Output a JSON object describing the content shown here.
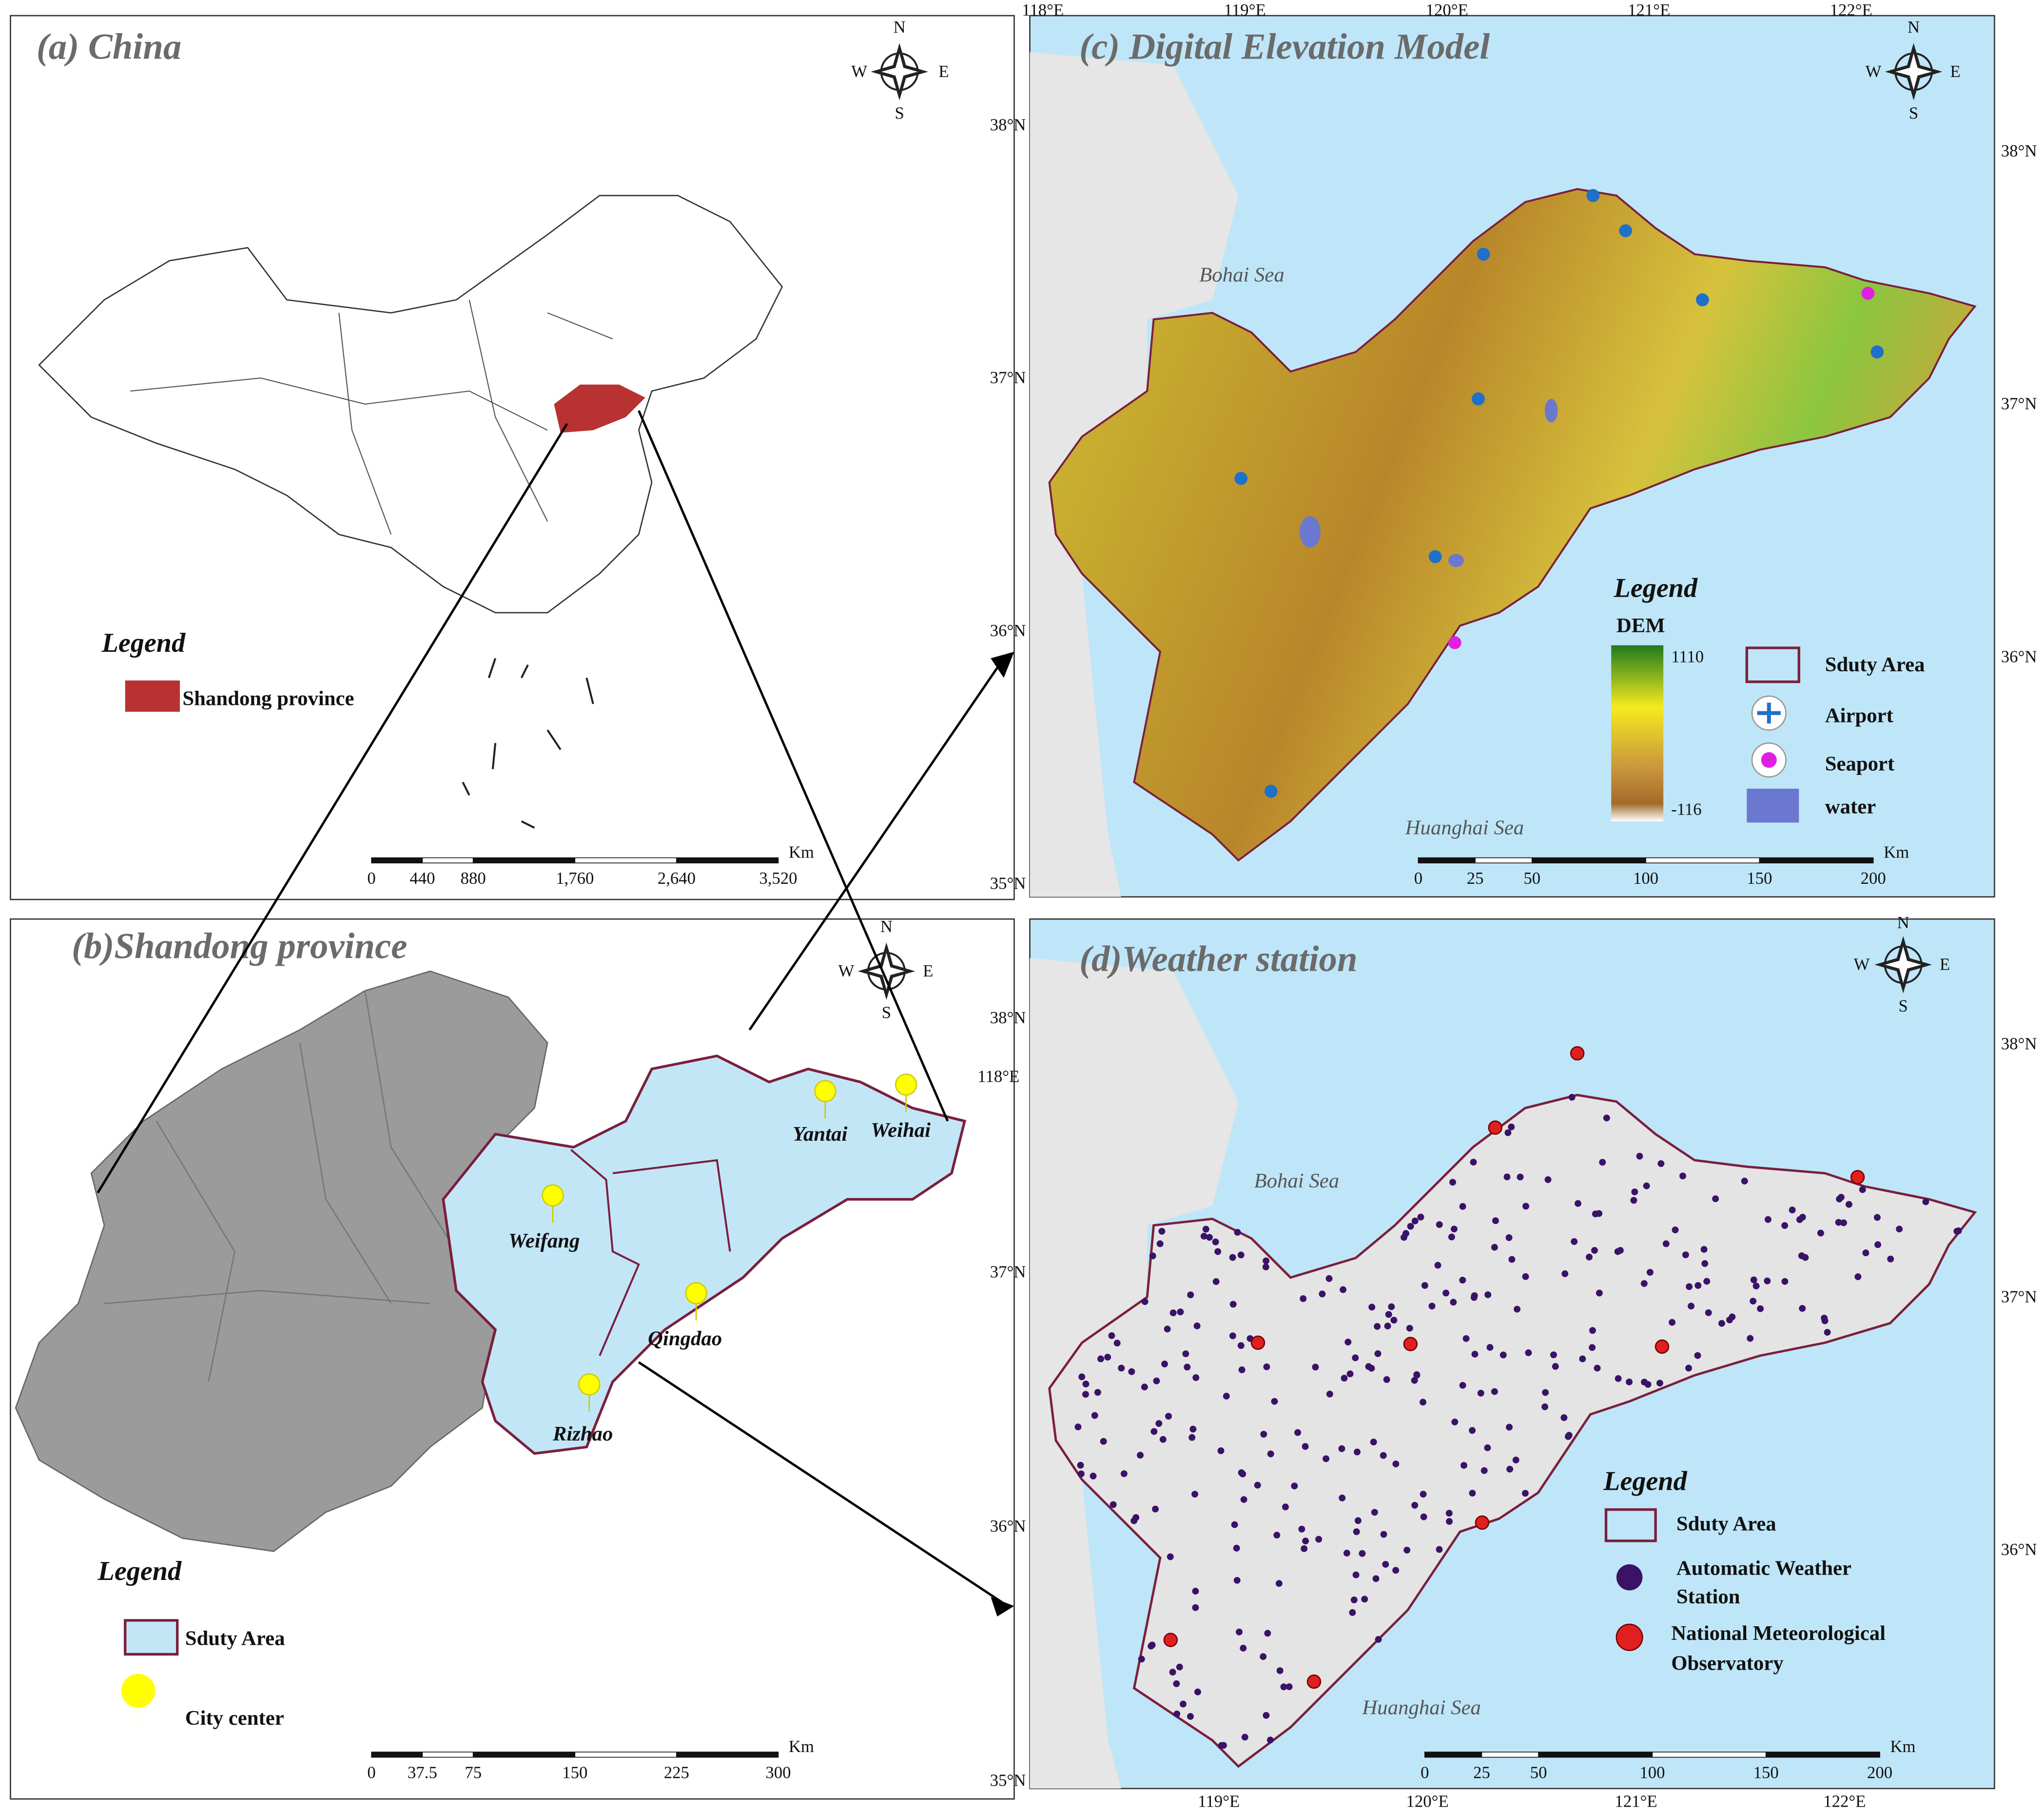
{
  "panels": {
    "a": {
      "title": "(a) China",
      "legend_title": "Legend",
      "legend_items": [
        "Shandong province"
      ],
      "compass": [
        "N",
        "E",
        "S",
        "W"
      ],
      "scale_ticks": [
        "0",
        "440",
        "880",
        "1,760",
        "2,640",
        "3,520"
      ],
      "scale_unit": "Km"
    },
    "b": {
      "title": "(b)Shandong province",
      "legend_title": "Legend",
      "legend_items": [
        "Sduty Area",
        "City center"
      ],
      "cities": [
        "Yantai",
        "Weihai",
        "Weifang",
        "Qingdao",
        "Rizhao"
      ],
      "compass": [
        "N",
        "E",
        "S",
        "W"
      ],
      "scale_ticks": [
        "0",
        "37.5",
        "75",
        "150",
        "225",
        "300"
      ],
      "scale_unit": "Km"
    },
    "c": {
      "title": "(c) Digital Elevation Model",
      "legend_title": "Legend",
      "dem_label": "DEM",
      "dem_max": 1110,
      "dem_min": -116,
      "legend_items": [
        "Sduty Area",
        "Airport",
        "Seaport",
        "water"
      ],
      "seas": [
        "Bohai Sea",
        "Huanghai Sea"
      ],
      "compass": [
        "N",
        "E",
        "S",
        "W"
      ],
      "top_lon": [
        "118°E",
        "119°E",
        "120°E",
        "121°E",
        "122°E"
      ],
      "left_lat": [
        "38°N",
        "37°N",
        "36°N",
        "35°N"
      ],
      "right_lat": [
        "38°N",
        "37°N",
        "36°N"
      ],
      "scale_ticks": [
        "0",
        "25",
        "50",
        "100",
        "150",
        "200"
      ],
      "scale_unit": "Km"
    },
    "d": {
      "title": "(d)Weather station",
      "legend_title": "Legend",
      "legend_items": [
        [
          "Sduty Area"
        ],
        [
          "Automatic Weather",
          "Station"
        ],
        [
          "National Meteorological",
          "Observatory"
        ]
      ],
      "seas": [
        "Bohai Sea",
        "Huanghai Sea"
      ],
      "compass": [
        "N",
        "E",
        "S",
        "W"
      ],
      "corner_lon": "118°E",
      "bottom_lon": [
        "119°E",
        "120°E",
        "121°E",
        "122°E"
      ],
      "left_lat": [
        "38°N",
        "37°N",
        "36°N",
        "35°N"
      ],
      "right_lat": [
        "38°N",
        "37°N",
        "36°N"
      ],
      "scale_ticks": [
        "0",
        "25",
        "50",
        "100",
        "150",
        "200"
      ],
      "scale_unit": "Km"
    }
  }
}
